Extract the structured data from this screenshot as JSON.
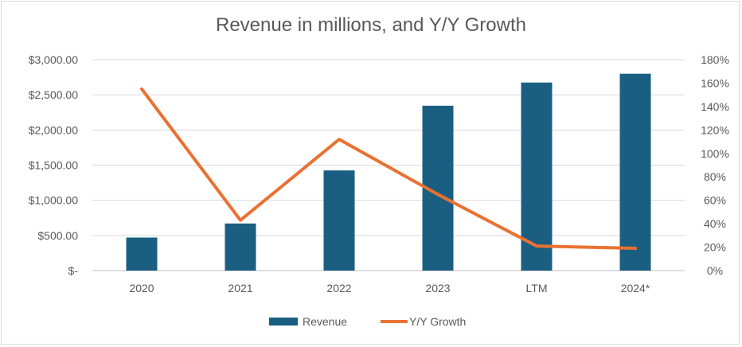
{
  "chart_data": {
    "type": "bar",
    "title": "Revenue in millions, and Y/Y Growth",
    "categories": [
      "2020",
      "2021",
      "2022",
      "2023",
      "LTM",
      "2024*"
    ],
    "series": [
      {
        "name": "Revenue",
        "type": "bar",
        "axis": "left",
        "color": "#1a5f82",
        "values": [
          470,
          670,
          1425,
          2345,
          2675,
          2800
        ]
      },
      {
        "name": "Y/Y Growth",
        "type": "line",
        "axis": "right",
        "color": "#e97132",
        "values": [
          1.55,
          0.43,
          1.12,
          0.65,
          0.21,
          0.19
        ]
      }
    ],
    "y_left": {
      "ylim": [
        0,
        3000
      ],
      "ticks": [
        0,
        500,
        1000,
        1500,
        2000,
        2500,
        3000
      ],
      "tick_labels": [
        "$-",
        "$500.00",
        "$1,000.00",
        "$1,500.00",
        "$2,000.00",
        "$2,500.00",
        "$3,000.00"
      ]
    },
    "y_right": {
      "ylim": [
        0,
        1.8
      ],
      "ticks": [
        0,
        0.2,
        0.4,
        0.6,
        0.8,
        1.0,
        1.2,
        1.4,
        1.6,
        1.8
      ],
      "tick_labels": [
        "0%",
        "20%",
        "40%",
        "60%",
        "80%",
        "100%",
        "120%",
        "140%",
        "160%",
        "180%"
      ]
    },
    "grid": true,
    "legend": {
      "position": "bottom",
      "entries": [
        "Revenue",
        "Y/Y Growth"
      ]
    }
  }
}
